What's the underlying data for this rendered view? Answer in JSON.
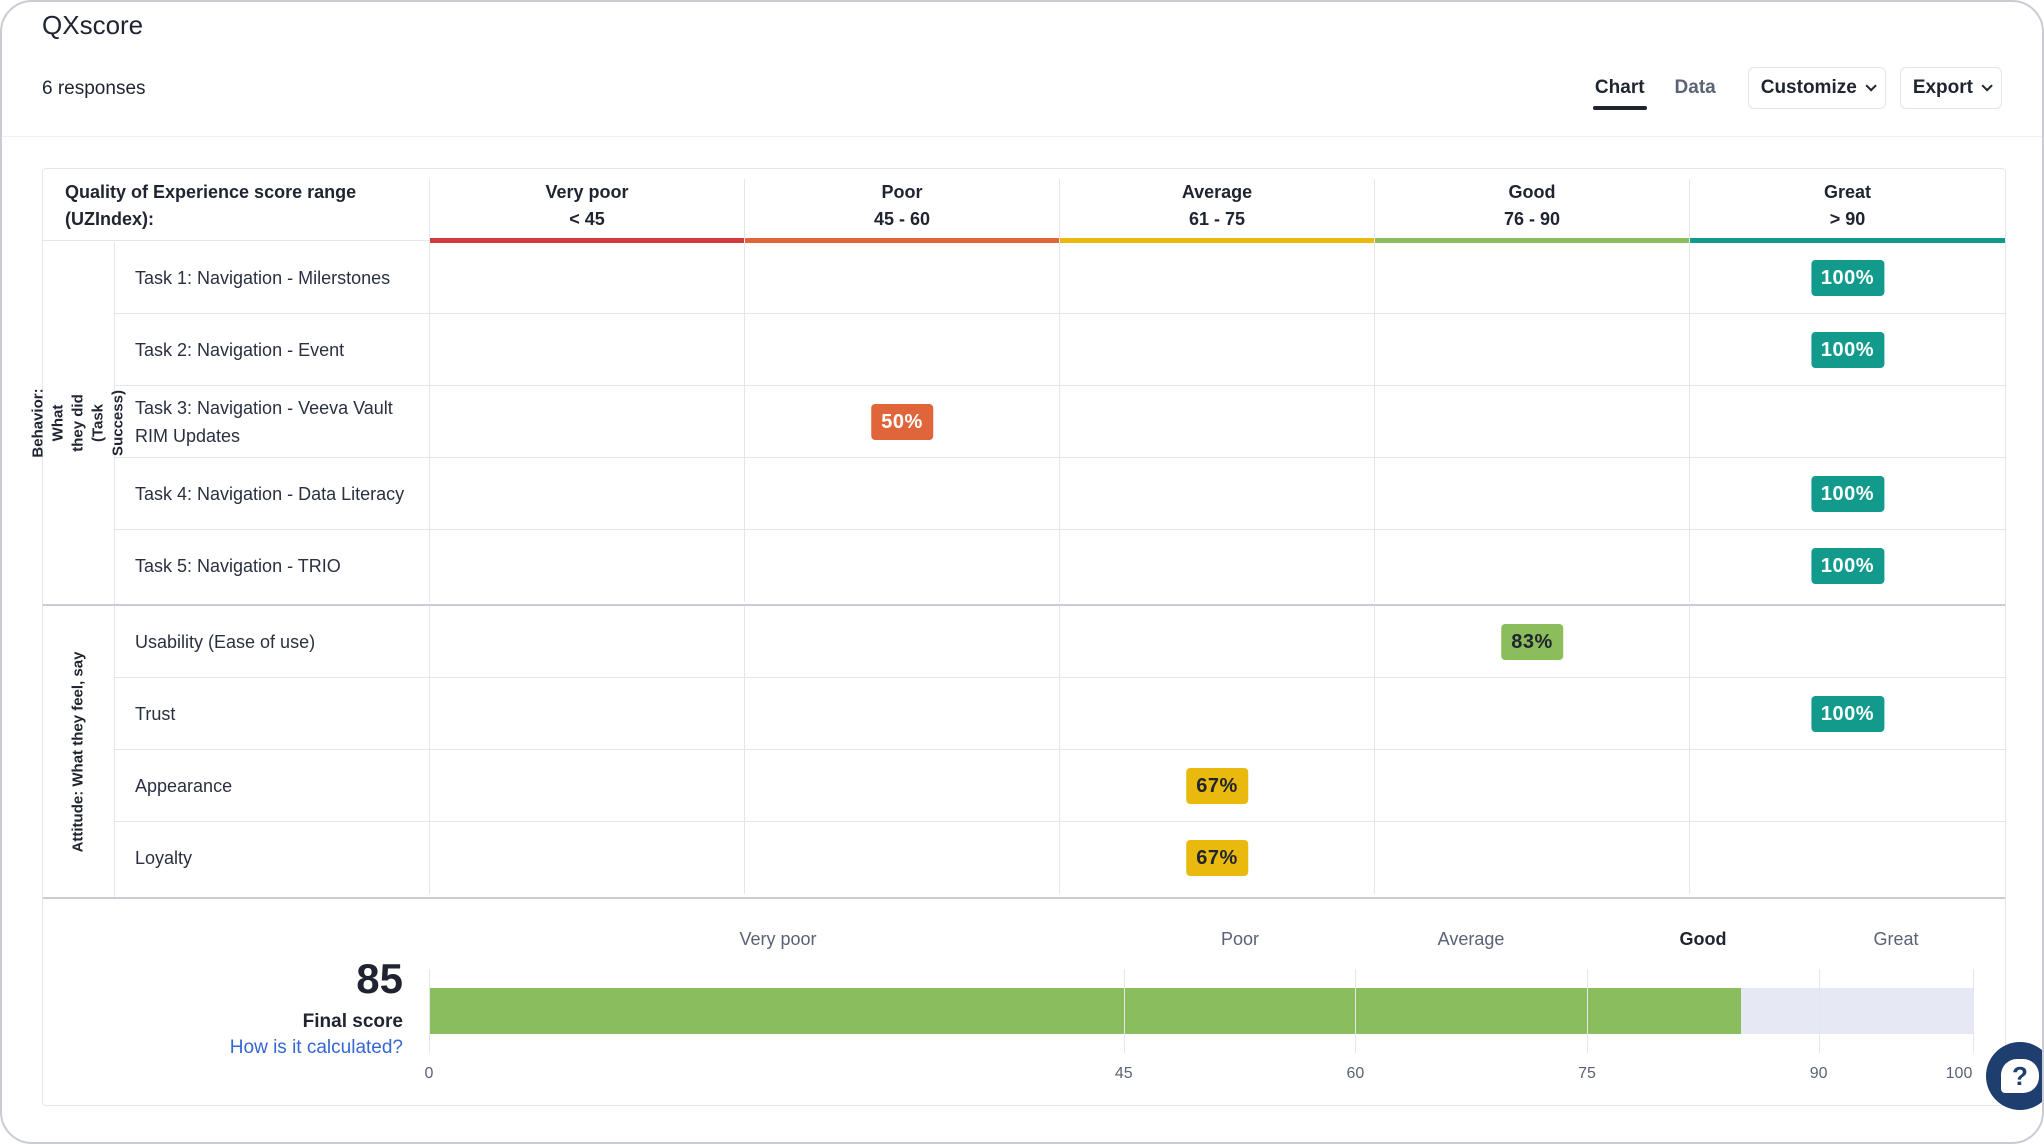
{
  "header": {
    "title": "QXscore",
    "responses": "6 responses",
    "tabs": [
      {
        "label": "Chart",
        "active": true
      },
      {
        "label": "Data",
        "active": false
      }
    ],
    "customize_label": "Customize",
    "export_label": "Export"
  },
  "table": {
    "range_label": "Quality of Experience score range (UZIndex):",
    "columns": [
      {
        "name": "Very poor",
        "range": "< 45",
        "color": "#d33c3c"
      },
      {
        "name": "Poor",
        "range": "45 - 60",
        "color": "#e0653a"
      },
      {
        "name": "Average",
        "range": "61 - 75",
        "color": "#eab90e"
      },
      {
        "name": "Good",
        "range": "76 - 90",
        "color": "#8bbd5b"
      },
      {
        "name": "Great",
        "range": "> 90",
        "color": "#129b8c"
      }
    ],
    "groups": [
      {
        "label": "Behavior: What they did (Task Success)",
        "rows": [
          {
            "label": "Task 1: Navigation - Milerstones",
            "value": "100%",
            "column": 4
          },
          {
            "label": "Task 2: Navigation - Event",
            "value": "100%",
            "column": 4
          },
          {
            "label": "Task 3: Navigation - Veeva Vault RIM Updates",
            "value": "50%",
            "column": 1
          },
          {
            "label": "Task 4: Navigation - Data Literacy",
            "value": "100%",
            "column": 4
          },
          {
            "label": "Task 5: Navigation - TRIO",
            "value": "100%",
            "column": 4
          }
        ]
      },
      {
        "label": "Attitude: What they feel, say",
        "rows": [
          {
            "label": "Usability (Ease of use)",
            "value": "83%",
            "column": 3
          },
          {
            "label": "Trust",
            "value": "100%",
            "column": 4
          },
          {
            "label": "Appearance",
            "value": "67%",
            "column": 2
          },
          {
            "label": "Loyalty",
            "value": "67%",
            "column": 2
          }
        ]
      }
    ]
  },
  "final": {
    "score": "85",
    "score_value": 85,
    "label": "Final score",
    "link": "How is it calculated?",
    "bands": [
      {
        "name": "Very poor",
        "active": false
      },
      {
        "name": "Poor",
        "active": false
      },
      {
        "name": "Average",
        "active": false
      },
      {
        "name": "Good",
        "active": true
      },
      {
        "name": "Great",
        "active": false
      }
    ],
    "ticks": [
      "0",
      "45",
      "60",
      "75",
      "90",
      "100"
    ],
    "tick_values": [
      0,
      45,
      60,
      75,
      90,
      100
    ],
    "fill_color": "#89bd5d",
    "track_color": "#e6e8f4"
  }
}
